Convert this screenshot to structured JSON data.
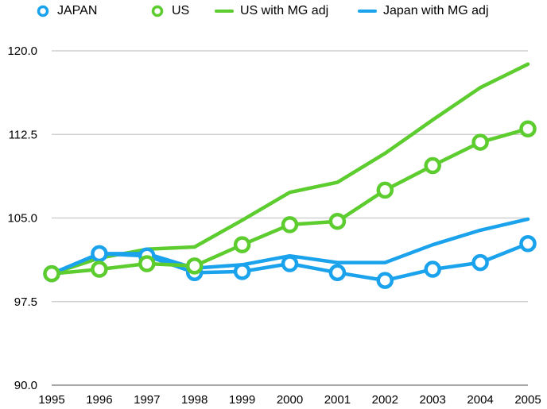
{
  "chart_data": {
    "type": "line",
    "title": "",
    "xlabel": "",
    "ylabel": "",
    "categories": [
      "1995",
      "1996",
      "1997",
      "1998",
      "1999",
      "2000",
      "2001",
      "2002",
      "2003",
      "2004",
      "2005"
    ],
    "yticks": [
      "90.0",
      "97.5",
      "105.0",
      "112.5",
      "120.0"
    ],
    "ylim": [
      90,
      122.5
    ],
    "grid": true,
    "legend_position": "top",
    "series": [
      {
        "name": "JAPAN",
        "color": "#1aa3ec",
        "markers": true,
        "values": [
          100.0,
          101.8,
          101.6,
          100.1,
          100.2,
          100.9,
          100.1,
          99.4,
          100.4,
          101.0,
          102.7
        ]
      },
      {
        "name": "US",
        "color": "#5ccc2e",
        "markers": true,
        "values": [
          100.0,
          100.4,
          100.9,
          100.7,
          102.6,
          104.4,
          104.7,
          107.5,
          109.7,
          111.8,
          113.0
        ]
      },
      {
        "name": "US with MG adj",
        "color": "#5ccc2e",
        "markers": false,
        "values": [
          100.0,
          101.4,
          102.2,
          102.4,
          104.8,
          107.3,
          108.2,
          110.8,
          113.8,
          116.7,
          118.8
        ]
      },
      {
        "name": "Japan with MG adj",
        "color": "#1aa3ec",
        "markers": false,
        "values": [
          100.0,
          101.8,
          101.8,
          100.5,
          100.8,
          101.6,
          101.0,
          101.0,
          102.6,
          103.9,
          104.9
        ]
      }
    ]
  }
}
